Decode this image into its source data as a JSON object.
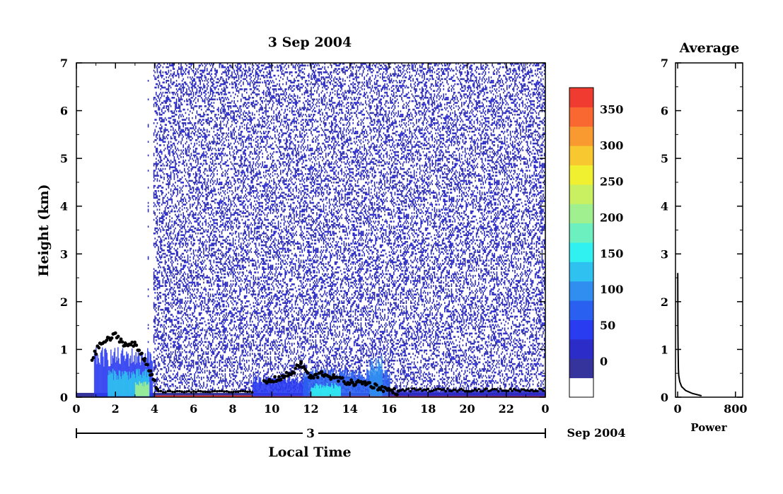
{
  "chart_data": [
    {
      "type": "heatmap",
      "title": "3 Sep 2004",
      "xlabel": "Local Time",
      "ylabel": "Height (km)",
      "xlim": [
        0,
        24
      ],
      "ylim": [
        0,
        7
      ],
      "x_ticks": [
        "0",
        "2",
        "4",
        "6",
        "8",
        "10",
        "12",
        "14",
        "16",
        "18",
        "20",
        "22",
        "0"
      ],
      "y_ticks": [
        "0",
        "1",
        "2",
        "3",
        "4",
        "5",
        "6",
        "7"
      ],
      "date_day": "3",
      "date_month_year": "Sep 2004",
      "colorbar": {
        "range": [
          -50,
          380
        ],
        "tick_labels": [
          "0",
          "50",
          "100",
          "150",
          "200",
          "250",
          "300",
          "350"
        ],
        "colors": [
          "#ffffff",
          "#34349c",
          "#2c2cc8",
          "#2a3cf0",
          "#2a60f0",
          "#2f8ef0",
          "#2fc2f0",
          "#30f0f0",
          "#6cf0c0",
          "#a0f090",
          "#c8f060",
          "#f0f030",
          "#f8c830",
          "#f89a30",
          "#f86830",
          "#f03c30"
        ]
      },
      "boundary_layer_height_km": [
        {
          "time": 0.8,
          "height": 0.8
        },
        {
          "time": 1.2,
          "height": 1.1
        },
        {
          "time": 1.6,
          "height": 1.2
        },
        {
          "time": 2.0,
          "height": 1.3
        },
        {
          "time": 2.5,
          "height": 1.1
        },
        {
          "time": 3.0,
          "height": 1.1
        },
        {
          "time": 3.5,
          "height": 0.8
        },
        {
          "time": 3.8,
          "height": 0.5
        },
        {
          "time": 4.2,
          "height": 0.1
        },
        {
          "time": 9.6,
          "height": 0.3
        },
        {
          "time": 10.4,
          "height": 0.4
        },
        {
          "time": 11.0,
          "height": 0.5
        },
        {
          "time": 11.5,
          "height": 0.7
        },
        {
          "time": 12.0,
          "height": 0.4
        },
        {
          "time": 12.6,
          "height": 0.5
        },
        {
          "time": 13.2,
          "height": 0.4
        },
        {
          "time": 14.0,
          "height": 0.3
        },
        {
          "time": 14.8,
          "height": 0.3
        },
        {
          "time": 15.5,
          "height": 0.2
        },
        {
          "time": 16.5,
          "height": 0.1
        }
      ]
    },
    {
      "type": "line",
      "title": "Average",
      "xlabel": "Power",
      "ylabel": "",
      "xlim": [
        -30,
        900
      ],
      "ylim": [
        0,
        7
      ],
      "x_ticks": [
        "0",
        "800"
      ],
      "y_ticks": [
        "0",
        "1",
        "2",
        "3",
        "4",
        "5",
        "6",
        "7"
      ],
      "series": [
        {
          "x": [
            330,
            200,
            110,
            55,
            30,
            15,
            10,
            8,
            5,
            3,
            2,
            1
          ],
          "y": [
            0.03,
            0.08,
            0.14,
            0.22,
            0.32,
            0.45,
            0.6,
            0.8,
            1.1,
            1.5,
            2.0,
            2.6
          ]
        }
      ]
    }
  ]
}
